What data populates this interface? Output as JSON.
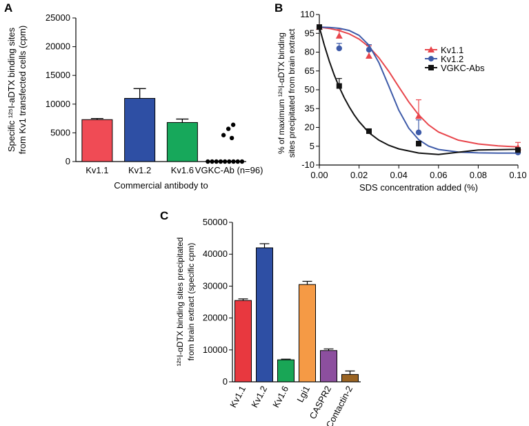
{
  "chart_data": [
    {
      "panel": "A",
      "type": "bar",
      "ylabel_lines": [
        "Specific ¹²⁵I-aDTX binding sites",
        "from Kv1 transfected cells (cpm)"
      ],
      "xlabel": "Commercial antibody to",
      "ylim": [
        0,
        25000
      ],
      "yticks": [
        0,
        5000,
        10000,
        15000,
        20000,
        25000
      ],
      "bars": [
        {
          "label": "Kv1.1",
          "value": 7300,
          "error": 200,
          "color": "#f04b55"
        },
        {
          "label": "Kv1.2",
          "value": 11000,
          "error": 1700,
          "color": "#2e4fa4"
        },
        {
          "label": "Kv1.6",
          "value": 6800,
          "error": 600,
          "color": "#17a85b"
        }
      ],
      "scatter_group": {
        "label": "VGKC-Ab",
        "annotation": "(n=96)",
        "points": [
          6400,
          5700,
          4600,
          4100,
          0,
          0,
          0,
          0,
          0,
          0,
          0,
          0,
          0
        ]
      }
    },
    {
      "panel": "B",
      "type": "line",
      "ylabel_lines": [
        "% of maximum ¹²⁵I-αDTX binding",
        "sites precipitated from brain extract"
      ],
      "xlabel": "SDS concentration added (%)",
      "xlim": [
        0,
        0.1
      ],
      "ylim": [
        -10,
        110
      ],
      "xticks": [
        "0.00",
        "0.02",
        "0.04",
        "0.06",
        "0.08",
        "0.10"
      ],
      "yticks": [
        -10,
        5,
        20,
        35,
        50,
        65,
        80,
        95,
        110
      ],
      "series": [
        {
          "name": "Kv1.1",
          "color": "#e8454b",
          "marker": "triangle",
          "x": [
            0,
            0.01,
            0.025,
            0.05,
            0.1
          ],
          "y": [
            100,
            93,
            77,
            29,
            4
          ],
          "err": [
            0,
            5,
            8,
            13,
            4
          ],
          "curve": [
            [
              0,
              100
            ],
            [
              0.005,
              98.9
            ],
            [
              0.01,
              97.2
            ],
            [
              0.015,
              94.6
            ],
            [
              0.02,
              90.4
            ],
            [
              0.025,
              84.2
            ],
            [
              0.03,
              75.5
            ],
            [
              0.035,
              64.6
            ],
            [
              0.04,
              52.3
            ],
            [
              0.045,
              40.3
            ],
            [
              0.05,
              30.0
            ],
            [
              0.055,
              22.0
            ],
            [
              0.06,
              16.3
            ],
            [
              0.07,
              9.8
            ],
            [
              0.08,
              6.8
            ],
            [
              0.09,
              5.3
            ],
            [
              0.1,
              4.5
            ]
          ]
        },
        {
          "name": "Kv1.2",
          "color": "#3d5aa8",
          "marker": "circle",
          "x": [
            0,
            0.01,
            0.025,
            0.05,
            0.1
          ],
          "y": [
            100,
            83,
            82,
            16,
            0
          ],
          "err": [
            0,
            4,
            4,
            10,
            0
          ],
          "curve": [
            [
              0,
              99.9
            ],
            [
              0.005,
              99.7
            ],
            [
              0.01,
              99.0
            ],
            [
              0.015,
              97.3
            ],
            [
              0.02,
              93.4
            ],
            [
              0.025,
              85.5
            ],
            [
              0.03,
              71.6
            ],
            [
              0.035,
              52.8
            ],
            [
              0.04,
              33.7
            ],
            [
              0.045,
              19.4
            ],
            [
              0.05,
              10.2
            ],
            [
              0.055,
              5.1
            ],
            [
              0.06,
              2.4
            ],
            [
              0.07,
              0.3
            ],
            [
              0.08,
              -0.3
            ],
            [
              0.09,
              -0.5
            ],
            [
              0.1,
              -0.5
            ]
          ]
        },
        {
          "name": "VGKC-Abs",
          "color": "#111111",
          "marker": "square",
          "x": [
            0,
            0.01,
            0.025,
            0.05,
            0.1
          ],
          "y": [
            100,
            53,
            17,
            7,
            2
          ],
          "err": [
            0,
            6,
            1,
            2,
            0
          ],
          "curve": [
            [
              0,
              100
            ],
            [
              0.0025,
              85.6
            ],
            [
              0.005,
              72.9
            ],
            [
              0.0075,
              61.8
            ],
            [
              0.01,
              52.2
            ],
            [
              0.0125,
              43.8
            ],
            [
              0.015,
              36.5
            ],
            [
              0.0175,
              30.1
            ],
            [
              0.02,
              24.6
            ],
            [
              0.025,
              15.7
            ],
            [
              0.03,
              9.8
            ],
            [
              0.035,
              5.7
            ],
            [
              0.04,
              2.9
            ],
            [
              0.05,
              -0.4
            ],
            [
              0.06,
              -1.6
            ],
            [
              0.08,
              2.0
            ],
            [
              0.1,
              2.5
            ]
          ]
        }
      ]
    },
    {
      "panel": "C",
      "type": "bar",
      "ylabel_lines": [
        "¹²⁵I-αDTX binding sites precipitated",
        "from brain extract (specific cpm)"
      ],
      "ylim": [
        0,
        50000
      ],
      "yticks": [
        0,
        10000,
        20000,
        30000,
        40000,
        50000
      ],
      "bars": [
        {
          "label": "Kv1.1",
          "value": 25500,
          "error": 500,
          "color": "#e8383f"
        },
        {
          "label": "Kv1.2",
          "value": 42000,
          "error": 1300,
          "color": "#2e4fa4"
        },
        {
          "label": "Kv1.6",
          "value": 6900,
          "error": 200,
          "color": "#19a656"
        },
        {
          "label": "Lgi1",
          "value": 30500,
          "error": 1000,
          "color": "#f59a45"
        },
        {
          "label": "CASPR2",
          "value": 9800,
          "error": 500,
          "color": "#8c4f9e"
        },
        {
          "label": "Contactin-2",
          "value": 2300,
          "error": 1100,
          "color": "#9a6423"
        }
      ]
    }
  ],
  "panel_letters": {
    "a": "A",
    "b": "B",
    "c": "C"
  }
}
